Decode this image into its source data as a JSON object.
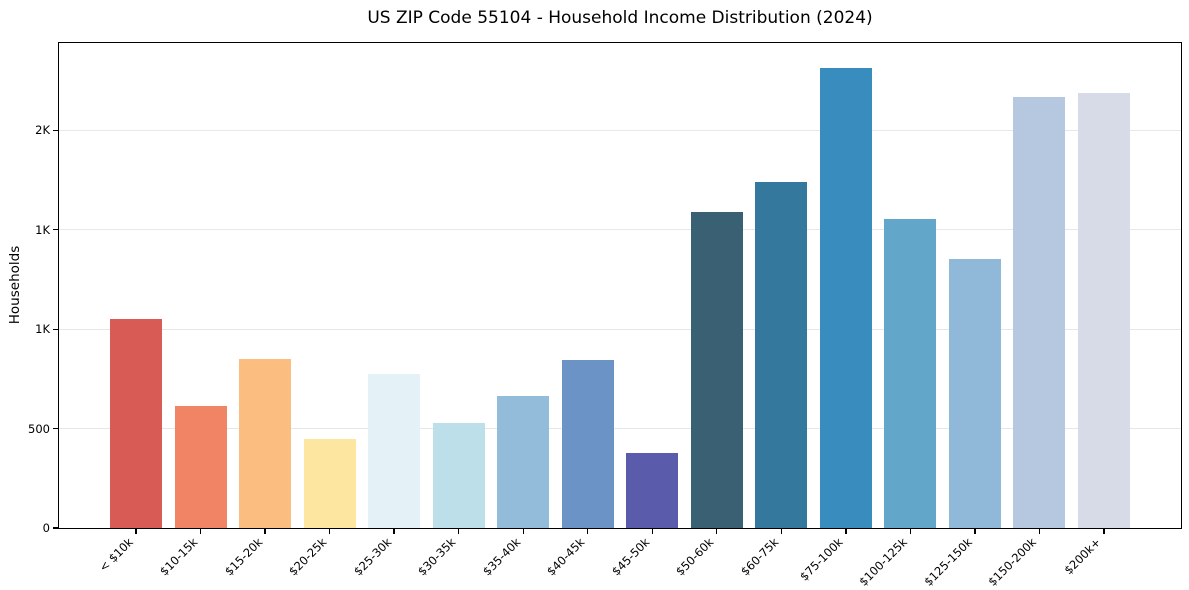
{
  "chart_data": {
    "type": "bar",
    "title": "US ZIP Code 55104 - Household Income Distribution (2024)",
    "xlabel": "",
    "ylabel": "Households",
    "categories": [
      "< $10k",
      "$10-15k",
      "$15-20k",
      "$20-25k",
      "$25-30k",
      "$30-35k",
      "$35-40k",
      "$40-45k",
      "$45-50k",
      "$50-60k",
      "$60-75k",
      "$75-100k",
      "$100-125k",
      "$125-150k",
      "$150-200k",
      "$200k+"
    ],
    "values": [
      1050,
      615,
      850,
      450,
      775,
      530,
      665,
      845,
      375,
      1590,
      1740,
      2315,
      1555,
      1355,
      2170,
      2190
    ],
    "bar_colors": [
      "#d85c55",
      "#f08464",
      "#fbbd80",
      "#fde6a0",
      "#e4f1f6",
      "#bcdfea",
      "#92bcd9",
      "#6b93c6",
      "#5a5baa",
      "#3a6073",
      "#35789e",
      "#388dbe",
      "#62a6ca",
      "#90b8d8",
      "#b6c8e0",
      "#d7dae7"
    ],
    "ylim": [
      0,
      2440
    ],
    "yticks": [
      {
        "value": 0,
        "label": "0"
      },
      {
        "value": 500,
        "label": "500"
      },
      {
        "value": 1000,
        "label": "1K"
      },
      {
        "value": 1500,
        "label": "1K"
      },
      {
        "value": 2000,
        "label": "2K"
      }
    ],
    "grid": "horizontal-only",
    "grid_color": "#e6e7e8",
    "legend": "none",
    "background": "#ffffff",
    "axis_color": "#000000",
    "bar_width_ratio": 0.805
  }
}
